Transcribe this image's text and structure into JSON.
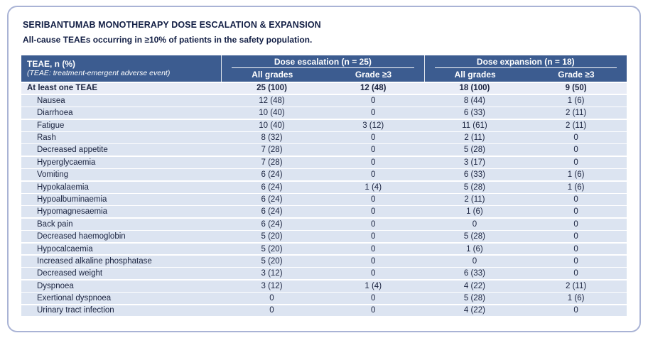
{
  "title": "SERIBANTUMAB MONOTHERAPY DOSE ESCALATION & EXPANSION",
  "subtitle": "All-cause TEAEs occurring in ≥10% of patients in the safety population.",
  "colors": {
    "header_bg": "#3c5c90",
    "row_bg": "#dce4f1",
    "total_row_bg": "#e8ecf6",
    "row_text": "#1b2440",
    "title_color": "#131f45",
    "card_border": "#a9b3d5"
  },
  "chart_data": {
    "type": "table",
    "title": "SERIBANTUMAB MONOTHERAPY DOSE ESCALATION & EXPANSION",
    "subtitle": "All-cause TEAEs occurring in ≥10% of patients in the safety population.",
    "header": {
      "row_label": "TEAE, n (%)",
      "row_sublabel": "(TEAE: treatment-emergent adverse event)",
      "groups": [
        {
          "label": "Dose escalation (n = 25)",
          "subcolumns": [
            "All grades",
            "Grade ≥3"
          ]
        },
        {
          "label": "Dose expansion (n = 18)",
          "subcolumns": [
            "All grades",
            "Grade ≥3"
          ]
        }
      ]
    },
    "rows": [
      {
        "name": "At least one TEAE",
        "bold": true,
        "values": [
          "25 (100)",
          "12 (48)",
          "18 (100)",
          "9 (50)"
        ]
      },
      {
        "name": "Nausea",
        "bold": false,
        "values": [
          "12 (48)",
          "0",
          "8 (44)",
          "1 (6)"
        ]
      },
      {
        "name": "Diarrhoea",
        "bold": false,
        "values": [
          "10 (40)",
          "0",
          "6 (33)",
          "2 (11)"
        ]
      },
      {
        "name": "Fatigue",
        "bold": false,
        "values": [
          "10 (40)",
          "3 (12)",
          "11 (61)",
          "2 (11)"
        ]
      },
      {
        "name": "Rash",
        "bold": false,
        "values": [
          "8 (32)",
          "0",
          "2 (11)",
          "0"
        ]
      },
      {
        "name": "Decreased appetite",
        "bold": false,
        "values": [
          "7 (28)",
          "0",
          "5 (28)",
          "0"
        ]
      },
      {
        "name": "Hyperglycaemia",
        "bold": false,
        "values": [
          "7 (28)",
          "0",
          "3 (17)",
          "0"
        ]
      },
      {
        "name": "Vomiting",
        "bold": false,
        "values": [
          "6 (24)",
          "0",
          "6 (33)",
          "1 (6)"
        ]
      },
      {
        "name": "Hypokalaemia",
        "bold": false,
        "values": [
          "6 (24)",
          "1 (4)",
          "5 (28)",
          "1 (6)"
        ]
      },
      {
        "name": "Hypoalbuminaemia",
        "bold": false,
        "values": [
          "6 (24)",
          "0",
          "2 (11)",
          "0"
        ]
      },
      {
        "name": "Hypomagnesaemia",
        "bold": false,
        "values": [
          "6 (24)",
          "0",
          "1 (6)",
          "0"
        ]
      },
      {
        "name": "Back pain",
        "bold": false,
        "values": [
          "6 (24)",
          "0",
          "0",
          "0"
        ]
      },
      {
        "name": "Decreased haemoglobin",
        "bold": false,
        "values": [
          "5 (20)",
          "0",
          "5 (28)",
          "0"
        ]
      },
      {
        "name": "Hypocalcaemia",
        "bold": false,
        "values": [
          "5 (20)",
          "0",
          "1 (6)",
          "0"
        ]
      },
      {
        "name": "Increased alkaline phosphatase",
        "bold": false,
        "values": [
          "5 (20)",
          "0",
          "0",
          "0"
        ]
      },
      {
        "name": "Decreased weight",
        "bold": false,
        "values": [
          "3 (12)",
          "0",
          "6 (33)",
          "0"
        ]
      },
      {
        "name": "Dyspnoea",
        "bold": false,
        "values": [
          "3 (12)",
          "1 (4)",
          "4 (22)",
          "2 (11)"
        ]
      },
      {
        "name": "Exertional dyspnoea",
        "bold": false,
        "values": [
          "0",
          "0",
          "5 (28)",
          "1 (6)"
        ]
      },
      {
        "name": "Urinary tract infection",
        "bold": false,
        "values": [
          "0",
          "0",
          "4 (22)",
          "0"
        ]
      }
    ]
  }
}
